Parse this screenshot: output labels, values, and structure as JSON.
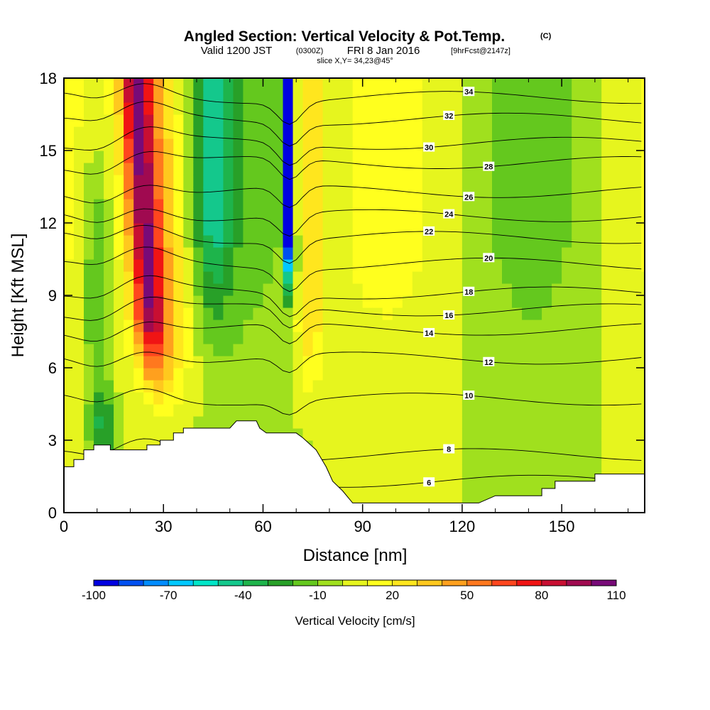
{
  "chart_data": {
    "type": "heatmap",
    "title": "Angled Section: Vertical Velocity & Pot.Temp.",
    "title_suffix": "(C)",
    "subtitle_valid": "Valid 1200 JST",
    "subtitle_utc": "(0300Z)",
    "subtitle_date": "FRI 8 Jan 2016",
    "subtitle_fcst": "[9hrFcst@2147z]",
    "slice_label": "slice X,Y= 34,23@45°",
    "xlabel": "Distance [nm]",
    "ylabel": "Height [Kft MSL]",
    "xlim": [
      0,
      175
    ],
    "ylim": [
      0,
      18
    ],
    "x_ticks": [
      0,
      30,
      60,
      90,
      120,
      150
    ],
    "y_ticks": [
      0,
      3,
      6,
      9,
      12,
      15,
      18
    ],
    "colorbar": {
      "title": "Vertical Velocity [cm/s]",
      "tick_labels": [
        "-100",
        "-70",
        "-40",
        "-10",
        "20",
        "50",
        "80",
        "110"
      ],
      "tick_values": [
        -100,
        -70,
        -40,
        -10,
        20,
        50,
        80,
        110
      ],
      "bins": [
        -100,
        -90,
        -80,
        -70,
        -60,
        -50,
        -40,
        -30,
        -20,
        -10,
        0,
        10,
        20,
        30,
        40,
        50,
        60,
        70,
        80,
        90,
        100,
        110
      ],
      "colors": [
        "#0000e0",
        "#0050f0",
        "#008cff",
        "#00c8ff",
        "#00e6c8",
        "#14c88c",
        "#1eb44b",
        "#28a028",
        "#64c81e",
        "#a0e01e",
        "#e6f51e",
        "#ffff1e",
        "#ffe61e",
        "#ffc81e",
        "#ffa01e",
        "#ff781e",
        "#ff461e",
        "#f01414",
        "#c80f32",
        "#a00a50",
        "#780a78"
      ]
    },
    "features": [
      {
        "name": "updraft",
        "x": 24,
        "value": 80
      },
      {
        "name": "downdraft",
        "x": 68,
        "value": -100
      },
      {
        "name": "updraft",
        "x": 74,
        "value": 30
      }
    ],
    "potential_temperature_contours": [
      {
        "value": 6,
        "y": 1.3
      },
      {
        "value": 8,
        "y": 2.4
      },
      {
        "value": 10,
        "y": 4.7
      },
      {
        "value": 12,
        "y": 6.4
      },
      {
        "value": 14,
        "y": 7.6
      },
      {
        "value": 16,
        "y": 8.4
      },
      {
        "value": 18,
        "y": 9.1
      },
      {
        "value": 20,
        "y": 10.3
      },
      {
        "value": 22,
        "y": 11.4
      },
      {
        "value": 24,
        "y": 12.3
      },
      {
        "value": 26,
        "y": 13.3
      },
      {
        "value": 28,
        "y": 14.5
      },
      {
        "value": 30,
        "y": 15.3
      },
      {
        "value": 32,
        "y": 16.3
      },
      {
        "value": 34,
        "y": 17.2
      }
    ],
    "terrain": [
      [
        0,
        1.9
      ],
      [
        3,
        1.9
      ],
      [
        3,
        2.2
      ],
      [
        6,
        2.2
      ],
      [
        6,
        2.6
      ],
      [
        9,
        2.6
      ],
      [
        9,
        2.8
      ],
      [
        14,
        2.8
      ],
      [
        14,
        2.6
      ],
      [
        25,
        2.6
      ],
      [
        25,
        2.8
      ],
      [
        29,
        2.8
      ],
      [
        29,
        3.0
      ],
      [
        33,
        3.0
      ],
      [
        33,
        3.3
      ],
      [
        36,
        3.3
      ],
      [
        36,
        3.5
      ],
      [
        42,
        3.5
      ],
      [
        50,
        3.5
      ],
      [
        52,
        3.8
      ],
      [
        58,
        3.8
      ],
      [
        59,
        3.5
      ],
      [
        61,
        3.3
      ],
      [
        65,
        3.3
      ],
      [
        70,
        3.3
      ],
      [
        72,
        3.1
      ],
      [
        76,
        2.6
      ],
      [
        79,
        1.9
      ],
      [
        81,
        1.3
      ],
      [
        84,
        0.9
      ],
      [
        87,
        0.4
      ],
      [
        93,
        0.4
      ],
      [
        125,
        0.4
      ],
      [
        130,
        0.7
      ],
      [
        144,
        0.7
      ],
      [
        144,
        1.0
      ],
      [
        148,
        1.0
      ],
      [
        148,
        1.3
      ],
      [
        160,
        1.3
      ],
      [
        160,
        1.6
      ],
      [
        175,
        1.6
      ]
    ]
  }
}
